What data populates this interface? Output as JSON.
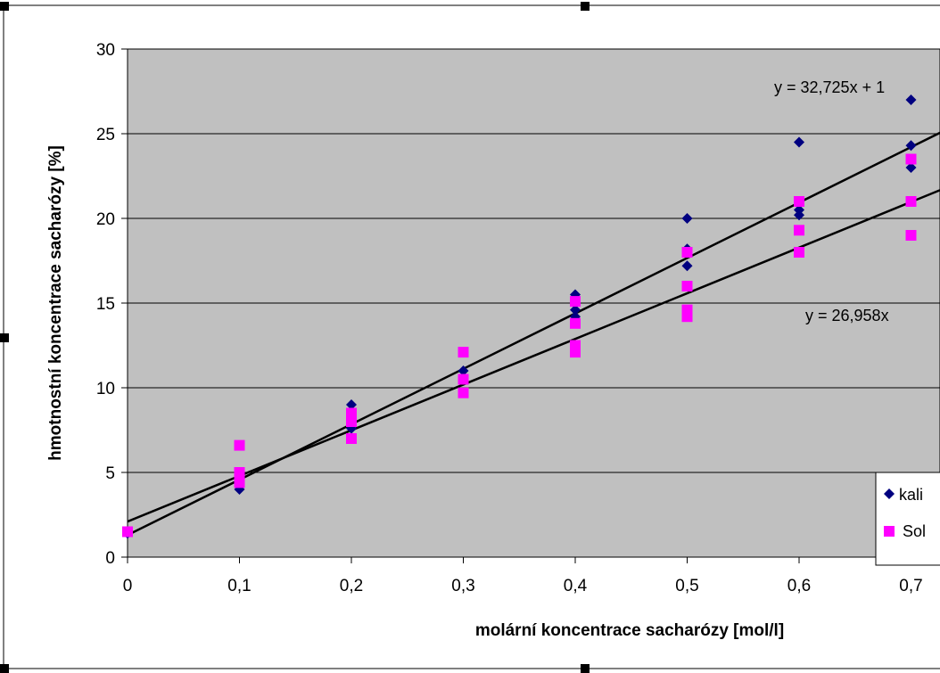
{
  "chart_data": {
    "type": "scatter",
    "xlabel": "molární koncentrace sacharózy [mol/l]",
    "ylabel": "hmotnostní koncentrace sacharózy [%]",
    "xlim": [
      0,
      0.73
    ],
    "ylim": [
      0,
      30
    ],
    "x_ticks": [
      "0",
      "0,1",
      "0,2",
      "0,3",
      "0,4",
      "0,5",
      "0,6",
      "0,7"
    ],
    "y_ticks": [
      "0",
      "5",
      "10",
      "15",
      "20",
      "25",
      "30"
    ],
    "grid": "horizontal",
    "plot_background": "#c0c0c0",
    "legend_position": "right",
    "series": [
      {
        "name": "kali",
        "marker": "diamond",
        "color": "#000080",
        "points": [
          [
            0,
            1.4
          ],
          [
            0.1,
            4.0
          ],
          [
            0.1,
            4.6
          ],
          [
            0.2,
            7.6
          ],
          [
            0.2,
            8.2
          ],
          [
            0.2,
            9.0
          ],
          [
            0.3,
            11.0
          ],
          [
            0.4,
            14.2
          ],
          [
            0.4,
            14.6
          ],
          [
            0.4,
            15.5
          ],
          [
            0.5,
            17.2
          ],
          [
            0.5,
            18.2
          ],
          [
            0.5,
            20.0
          ],
          [
            0.6,
            20.2
          ],
          [
            0.6,
            20.5
          ],
          [
            0.6,
            24.5
          ],
          [
            0.7,
            23.0
          ],
          [
            0.7,
            24.3
          ],
          [
            0.7,
            27.0
          ]
        ],
        "trendline": {
          "slope": 32.725,
          "intercept": 1.3,
          "label": "y = 32,725x + 1"
        }
      },
      {
        "name": "Sol",
        "marker": "square",
        "color": "#ff00ff",
        "points": [
          [
            0,
            1.5
          ],
          [
            0.1,
            4.4
          ],
          [
            0.1,
            5.0
          ],
          [
            0.1,
            6.6
          ],
          [
            0.2,
            7.0
          ],
          [
            0.2,
            8.0
          ],
          [
            0.2,
            8.5
          ],
          [
            0.3,
            9.7
          ],
          [
            0.3,
            10.5
          ],
          [
            0.3,
            12.1
          ],
          [
            0.4,
            12.1
          ],
          [
            0.4,
            12.5
          ],
          [
            0.4,
            13.8
          ],
          [
            0.4,
            15.1
          ],
          [
            0.5,
            14.2
          ],
          [
            0.5,
            14.6
          ],
          [
            0.5,
            16.0
          ],
          [
            0.5,
            18.0
          ],
          [
            0.6,
            18.0
          ],
          [
            0.6,
            19.3
          ],
          [
            0.6,
            21.0
          ],
          [
            0.7,
            19.0
          ],
          [
            0.7,
            21.0
          ],
          [
            0.7,
            23.5
          ]
        ],
        "trendline": {
          "slope": 26.958,
          "intercept": 2.1,
          "label": "y = 26,958x"
        }
      }
    ]
  }
}
